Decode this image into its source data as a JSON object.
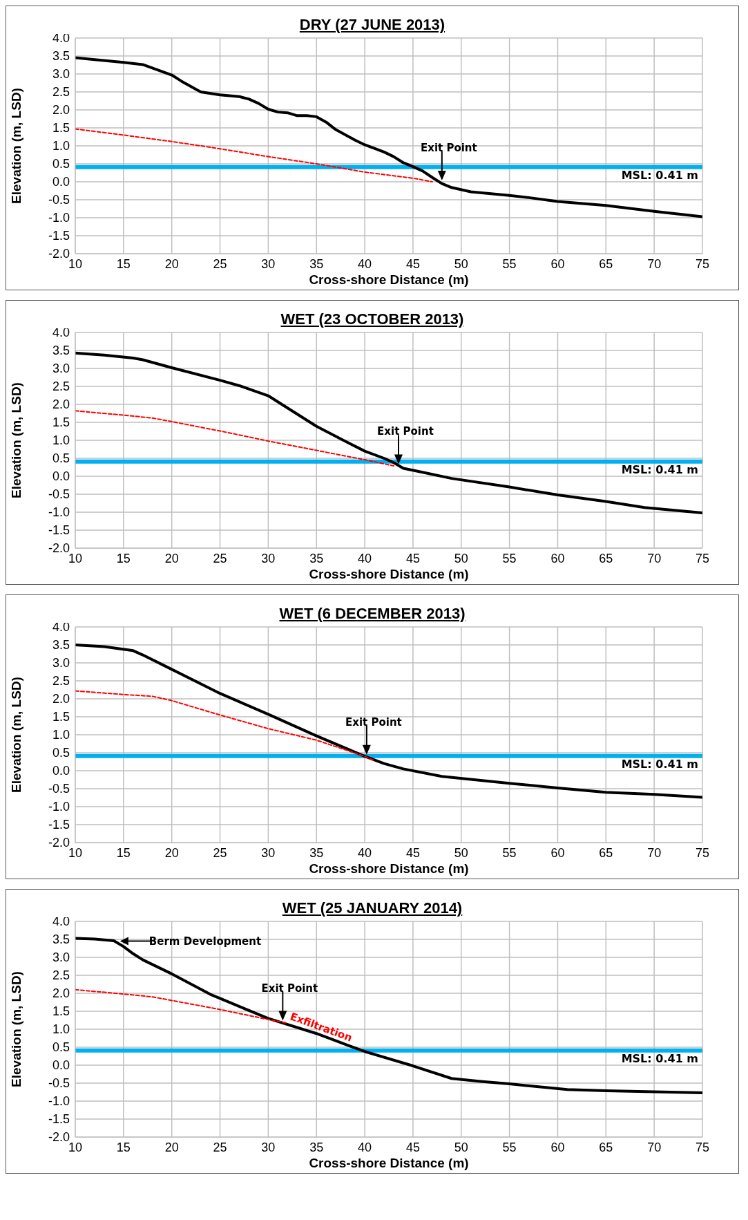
{
  "chart_data": [
    {
      "type": "line",
      "title": "DRY (27 JUNE 2013)",
      "xlabel": "Cross-shore Distance (m)",
      "ylabel": "Elevation (m, LSD)",
      "xlim": [
        10,
        75
      ],
      "xticks": [
        10,
        15,
        20,
        25,
        30,
        35,
        40,
        45,
        50,
        55,
        60,
        65,
        70,
        75
      ],
      "ylim": [
        -2,
        4
      ],
      "yticks": [
        {
          "value": -2,
          "label": "-2.0"
        },
        -1.5,
        {
          "value": -1,
          "label": "-1.0"
        },
        -0.5,
        {
          "value": 0,
          "label": "0.0"
        },
        0.5,
        {
          "value": 1,
          "label": "1.0"
        },
        1.5,
        {
          "value": 2,
          "label": "2.0"
        },
        2.5,
        {
          "value": 3,
          "label": "3.0"
        },
        3.5,
        {
          "value": 4,
          "label": "4.0"
        }
      ],
      "grid": true,
      "marker": "none",
      "series": [
        {
          "color": "#000000",
          "line_style": "solid",
          "x": [
            10,
            12,
            15,
            17,
            20,
            21,
            22,
            23,
            25,
            27,
            28,
            29,
            30,
            31,
            32,
            33,
            34,
            35,
            36,
            37,
            39,
            40,
            42,
            43,
            44,
            45,
            46,
            47,
            48,
            49,
            51,
            55,
            57,
            60,
            65,
            70,
            75
          ],
          "values": [
            3.45,
            3.4,
            3.32,
            3.26,
            2.97,
            2.8,
            2.65,
            2.5,
            2.42,
            2.37,
            2.3,
            2.18,
            2.02,
            1.94,
            1.92,
            1.84,
            1.84,
            1.81,
            1.66,
            1.45,
            1.16,
            1.03,
            0.83,
            0.7,
            0.53,
            0.42,
            0.3,
            0.12,
            -0.05,
            -0.16,
            -0.28,
            -0.38,
            -0.44,
            -0.55,
            -0.66,
            -0.82,
            -0.97
          ]
        },
        {
          "color": "#ff0000",
          "line_style": "dashed",
          "x": [
            10,
            15,
            20,
            25,
            30,
            35,
            40,
            45,
            47
          ],
          "values": [
            1.47,
            1.3,
            1.12,
            0.92,
            0.7,
            0.5,
            0.27,
            0.1,
            0.0
          ]
        }
      ],
      "ref_lines": [
        {
          "axis": "y",
          "value": 0.41,
          "label": "MSL: 0.41 m",
          "color": "#00b0f0"
        }
      ],
      "annotations": [
        {
          "text": "Exit Point",
          "x": 48,
          "y": 0
        }
      ]
    },
    {
      "type": "line",
      "title": "WET (23 OCTOBER 2013)",
      "xlabel": "Cross-shore Distance (m)",
      "ylabel": "Elevation (m, LSD)",
      "xlim": [
        10,
        75
      ],
      "xticks": [
        10,
        15,
        20,
        25,
        30,
        35,
        40,
        45,
        50,
        55,
        60,
        65,
        70,
        75
      ],
      "ylim": [
        -2,
        4
      ],
      "yticks": [
        {
          "value": -2,
          "label": "-2.0"
        },
        -1.5,
        {
          "value": -1,
          "label": "-1.0"
        },
        -0.5,
        {
          "value": 0,
          "label": "0.0"
        },
        0.5,
        {
          "value": 1,
          "label": "1.0"
        },
        1.5,
        {
          "value": 2,
          "label": "2.0"
        },
        2.5,
        {
          "value": 3,
          "label": "3.0"
        },
        3.5,
        {
          "value": 4,
          "label": "4.0"
        }
      ],
      "grid": true,
      "marker": "none",
      "series": [
        {
          "color": "#000000",
          "line_style": "solid",
          "x": [
            10,
            13,
            16,
            17,
            20,
            25,
            27,
            30,
            32,
            35,
            38,
            40,
            42,
            43,
            44,
            46,
            49,
            55,
            60,
            65,
            69,
            75
          ],
          "values": [
            3.43,
            3.37,
            3.29,
            3.24,
            3.02,
            2.67,
            2.52,
            2.24,
            1.9,
            1.39,
            0.97,
            0.7,
            0.5,
            0.38,
            0.22,
            0.11,
            -0.06,
            -0.3,
            -0.52,
            -0.7,
            -0.87,
            -1.02
          ]
        },
        {
          "color": "#ff0000",
          "line_style": "dashed",
          "x": [
            10,
            15,
            18,
            20,
            25,
            30,
            35,
            40,
            43
          ],
          "values": [
            1.82,
            1.7,
            1.62,
            1.52,
            1.26,
            0.98,
            0.72,
            0.46,
            0.29
          ]
        }
      ],
      "ref_lines": [
        {
          "axis": "y",
          "value": 0.41,
          "label": "MSL: 0.41 m",
          "color": "#00b0f0"
        }
      ],
      "annotations": [
        {
          "text": "Exit Point",
          "x": 43.5,
          "y": 0.3
        }
      ]
    },
    {
      "type": "line",
      "title": "WET (6 DECEMBER 2013)",
      "xlabel": "Cross-shore Distance (m)",
      "ylabel": "Elevation (m, LSD)",
      "xlim": [
        10,
        75
      ],
      "xticks": [
        10,
        15,
        20,
        25,
        30,
        35,
        40,
        45,
        50,
        55,
        60,
        65,
        70,
        75
      ],
      "ylim": [
        -2,
        4
      ],
      "yticks": [
        {
          "value": -2,
          "label": "-2.0"
        },
        -1.5,
        {
          "value": -1,
          "label": "-1.0"
        },
        -0.5,
        {
          "value": 0,
          "label": "0.0"
        },
        0.5,
        {
          "value": 1,
          "label": "1.0"
        },
        1.5,
        {
          "value": 2,
          "label": "2.0"
        },
        2.5,
        {
          "value": 3,
          "label": "3.0"
        },
        3.5,
        {
          "value": 4,
          "label": "4.0"
        }
      ],
      "grid": true,
      "marker": "none",
      "series": [
        {
          "color": "#000000",
          "line_style": "solid",
          "x": [
            10,
            13,
            16,
            17,
            20,
            25,
            30,
            35,
            40,
            42,
            44,
            48,
            55,
            60,
            65,
            70,
            75
          ],
          "values": [
            3.5,
            3.45,
            3.34,
            3.22,
            2.82,
            2.15,
            1.57,
            0.97,
            0.4,
            0.2,
            0.05,
            -0.16,
            -0.35,
            -0.48,
            -0.6,
            -0.66,
            -0.74
          ]
        },
        {
          "color": "#ff0000",
          "line_style": "dashed",
          "x": [
            10,
            15,
            18,
            20,
            25,
            30,
            35,
            40,
            41
          ],
          "values": [
            2.22,
            2.12,
            2.07,
            1.95,
            1.55,
            1.17,
            0.85,
            0.4,
            0.28
          ]
        }
      ],
      "ref_lines": [
        {
          "axis": "y",
          "value": 0.41,
          "label": "MSL: 0.41 m",
          "color": "#00b0f0"
        }
      ],
      "annotations": [
        {
          "text": "Exit Point",
          "x": 40.2,
          "y": 0.41
        }
      ]
    },
    {
      "type": "line",
      "title": "WET (25 JANUARY 2014)",
      "xlabel": "Cross-shore Distance (m)",
      "ylabel": "Elevation (m, LSD)",
      "xlim": [
        10,
        75
      ],
      "xticks": [
        10,
        15,
        20,
        25,
        30,
        35,
        40,
        45,
        50,
        55,
        60,
        65,
        70,
        75
      ],
      "ylim": [
        -2,
        4
      ],
      "yticks": [
        {
          "value": -2,
          "label": "-2.0"
        },
        -1.5,
        {
          "value": -1,
          "label": "-1.0"
        },
        -0.5,
        {
          "value": 0,
          "label": "0.0"
        },
        0.5,
        {
          "value": 1,
          "label": "1.0"
        },
        1.5,
        {
          "value": 2,
          "label": "2.0"
        },
        2.5,
        {
          "value": 3,
          "label": "3.0"
        },
        3.5,
        {
          "value": 4,
          "label": "4.0"
        }
      ],
      "grid": true,
      "marker": "none",
      "series": [
        {
          "color": "#000000",
          "line_style": "solid",
          "x": [
            10,
            12,
            14,
            15,
            16,
            17,
            20,
            24,
            25,
            28,
            30,
            35,
            40,
            45,
            49,
            52,
            55,
            61,
            65,
            70,
            75
          ],
          "values": [
            3.53,
            3.51,
            3.46,
            3.3,
            3.1,
            2.93,
            2.54,
            1.97,
            1.86,
            1.52,
            1.3,
            0.88,
            0.38,
            -0.02,
            -0.37,
            -0.45,
            -0.52,
            -0.68,
            -0.71,
            -0.74,
            -0.77
          ]
        },
        {
          "color": "#ff0000",
          "line_style": "dashed",
          "x": [
            10,
            15,
            18,
            20,
            25,
            30,
            32
          ],
          "values": [
            2.1,
            1.98,
            1.9,
            1.8,
            1.55,
            1.27,
            1.17
          ]
        }
      ],
      "ref_lines": [
        {
          "axis": "y",
          "value": 0.41,
          "label": "MSL: 0.41 m",
          "color": "#00b0f0"
        }
      ],
      "annotations": [
        {
          "text": "Berm Development",
          "x": 14.5,
          "y": 3.45
        },
        {
          "text": "Exit Point",
          "x": 31.5,
          "y": 1.2
        },
        "Exfiltration"
      ]
    }
  ]
}
